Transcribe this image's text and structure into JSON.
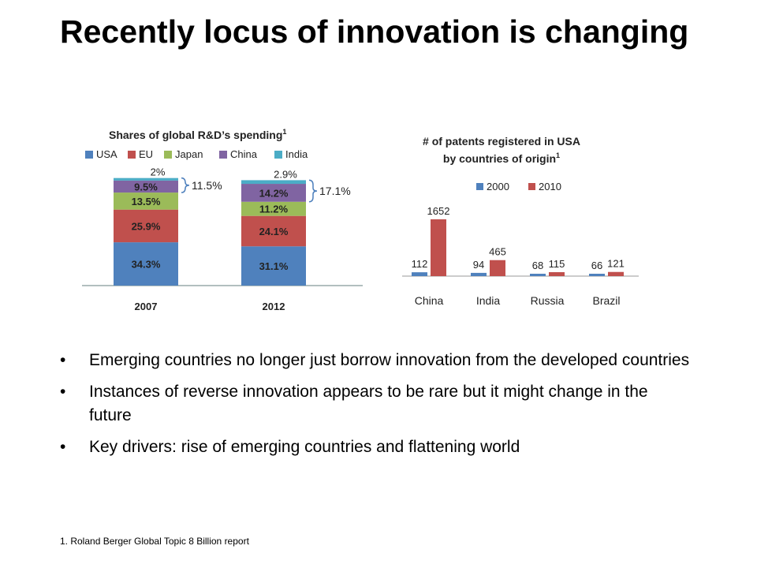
{
  "slide": {
    "title": "Recently locus of innovation is changing",
    "bullets": [
      "Emerging countries no longer just borrow innovation from the developed countries",
      "Instances of reverse innovation appears to be rare but it might change in the future",
      "Key drivers: rise of emerging countries and flattening world"
    ],
    "bullet_glyph": "•",
    "footnote": "1. Roland Berger Global Topic 8 Billion report"
  },
  "chart_data": [
    {
      "type": "bar",
      "stacked": true,
      "title": "Shares of global R&D’s spending",
      "title_sup": "1",
      "categories": [
        "2007",
        "2012"
      ],
      "series": [
        {
          "name": "USA",
          "color": "#4f81bd",
          "values": [
            34.3,
            31.1
          ],
          "labels": [
            "34.3%",
            "31.1%"
          ]
        },
        {
          "name": "EU",
          "color": "#c0504d",
          "values": [
            25.9,
            24.1
          ],
          "labels": [
            "25.9%",
            "24.1%"
          ]
        },
        {
          "name": "Japan",
          "color": "#9bbb59",
          "values": [
            13.5,
            11.2
          ],
          "labels": [
            "13.5%",
            "11.2%"
          ]
        },
        {
          "name": "China",
          "color": "#8064a2",
          "values": [
            9.5,
            14.2
          ],
          "labels": [
            "9.5%",
            "14.2%"
          ]
        },
        {
          "name": "India",
          "color": "#4bacc6",
          "values": [
            2,
            2.9
          ],
          "labels": [
            "2%",
            "2.9%"
          ]
        }
      ],
      "annotations": [
        "11.5%",
        "17.1%"
      ],
      "legend": "top"
    },
    {
      "type": "bar",
      "title": "# of patents registered in USA by countries of origin",
      "title_lines": [
        "# of patents registered in USA",
        "by countries of origin"
      ],
      "title_sup": "1",
      "categories": [
        "China",
        "India",
        "Russia",
        "Brazil"
      ],
      "series": [
        {
          "name": "2000",
          "color": "#4f81bd",
          "values": [
            112,
            94,
            68,
            66
          ]
        },
        {
          "name": "2010",
          "color": "#c0504d",
          "values": [
            1652,
            465,
            115,
            121
          ]
        }
      ],
      "ylim": [
        0,
        1700
      ],
      "legend": "top"
    }
  ]
}
